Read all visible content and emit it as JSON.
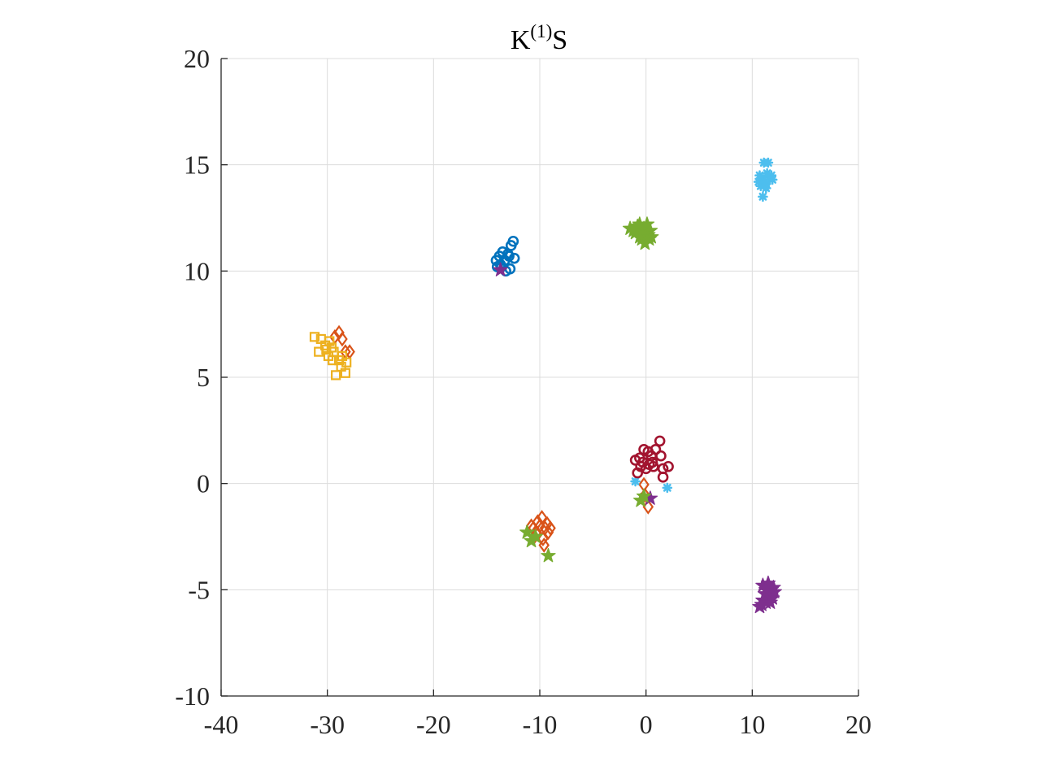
{
  "chart_data": {
    "type": "scatter",
    "title": {
      "main": "K",
      "superscript": "(1)",
      "suffix": "S"
    },
    "xlabel": "",
    "ylabel": "",
    "xlim": [
      -40,
      20
    ],
    "ylim": [
      -10,
      20
    ],
    "xticks": [
      -40,
      -30,
      -20,
      -10,
      0,
      10,
      20
    ],
    "yticks": [
      -10,
      -5,
      0,
      5,
      10,
      15,
      20
    ],
    "xtick_labels": [
      "-40",
      "-30",
      "-20",
      "-10",
      "0",
      "10",
      "20"
    ],
    "ytick_labels": [
      "-10",
      "-5",
      "0",
      "5",
      "10",
      "15",
      "20"
    ],
    "grid": true,
    "series": [
      {
        "color": "#0072BD",
        "marker": "circle",
        "points": [
          [
            -13.6,
            10.2
          ],
          [
            -13.3,
            10.5
          ],
          [
            -13.0,
            10.8
          ],
          [
            -12.7,
            11.2
          ],
          [
            -12.5,
            11.4
          ],
          [
            -13.8,
            10.7
          ],
          [
            -14.1,
            10.5
          ],
          [
            -12.8,
            10.1
          ],
          [
            -13.2,
            10.0
          ],
          [
            -12.4,
            10.6
          ],
          [
            -13.5,
            10.9
          ],
          [
            -14.0,
            10.2
          ],
          [
            -12.9,
            10.7
          ],
          [
            -13.7,
            10.3
          ]
        ]
      },
      {
        "color": "#D95319",
        "marker": "diamond",
        "points": [
          [
            -29.3,
            6.9
          ],
          [
            -28.9,
            7.1
          ],
          [
            -28.6,
            6.8
          ],
          [
            -28.3,
            6.2
          ],
          [
            -27.9,
            6.2
          ],
          [
            -10.2,
            -1.8
          ],
          [
            -9.8,
            -1.6
          ],
          [
            -9.5,
            -2.1
          ],
          [
            -9.2,
            -2.3
          ],
          [
            -10.5,
            -2.5
          ],
          [
            -9.7,
            -2.6
          ],
          [
            -10.0,
            -2.0
          ],
          [
            -9.3,
            -1.9
          ],
          [
            -10.8,
            -2.0
          ],
          [
            -9.6,
            -2.9
          ],
          [
            -10.3,
            -2.3
          ],
          [
            -9.0,
            -2.1
          ],
          [
            -10.6,
            -2.1
          ],
          [
            -0.2,
            -0.05
          ],
          [
            -0.1,
            -0.55
          ],
          [
            0.2,
            -1.1
          ]
        ]
      },
      {
        "color": "#EDB120",
        "marker": "square",
        "points": [
          [
            -31.2,
            6.9
          ],
          [
            -30.6,
            6.8
          ],
          [
            -30.2,
            6.5
          ],
          [
            -29.8,
            6.7
          ],
          [
            -30.8,
            6.2
          ],
          [
            -29.9,
            6.0
          ],
          [
            -29.5,
            5.8
          ],
          [
            -28.9,
            5.8
          ],
          [
            -28.6,
            6.0
          ],
          [
            -28.2,
            5.7
          ],
          [
            -29.2,
            5.1
          ],
          [
            -28.3,
            5.2
          ],
          [
            -30.1,
            6.3
          ],
          [
            -29.4,
            6.2
          ],
          [
            -28.7,
            5.5
          ],
          [
            -29.6,
            6.4
          ]
        ]
      },
      {
        "color": "#7E2F8E",
        "marker": "star",
        "points": [
          [
            11.0,
            -4.8
          ],
          [
            11.4,
            -4.9
          ],
          [
            11.8,
            -5.0
          ],
          [
            11.2,
            -5.2
          ],
          [
            11.6,
            -5.3
          ],
          [
            12.1,
            -5.1
          ],
          [
            11.0,
            -5.5
          ],
          [
            10.7,
            -5.8
          ],
          [
            11.3,
            -5.6
          ],
          [
            11.9,
            -5.4
          ],
          [
            11.5,
            -4.7
          ],
          [
            12.0,
            -4.9
          ],
          [
            10.9,
            -5.7
          ],
          [
            11.7,
            -5.6
          ],
          [
            11.3,
            -5.0
          ],
          [
            -13.7,
            10.05
          ],
          [
            0.4,
            -0.7
          ]
        ]
      },
      {
        "color": "#77AC30",
        "marker": "star",
        "points": [
          [
            -1.5,
            12.0
          ],
          [
            -1.0,
            11.8
          ],
          [
            -0.6,
            12.2
          ],
          [
            -0.2,
            12.0
          ],
          [
            0.2,
            11.7
          ],
          [
            -0.4,
            11.5
          ],
          [
            -0.1,
            11.3
          ],
          [
            0.4,
            11.9
          ],
          [
            -0.8,
            12.1
          ],
          [
            0.1,
            12.2
          ],
          [
            -1.2,
            11.9
          ],
          [
            -0.3,
            11.8
          ],
          [
            0.3,
            11.5
          ],
          [
            -0.6,
            11.6
          ],
          [
            0.5,
            11.6
          ],
          [
            -11.2,
            -2.3
          ],
          [
            -10.8,
            -2.7
          ],
          [
            -10.4,
            -2.5
          ],
          [
            -9.2,
            -3.4
          ],
          [
            -0.5,
            -0.8
          ],
          [
            -0.2,
            -0.6
          ]
        ]
      },
      {
        "color": "#4DBEEE",
        "marker": "asterisk",
        "points": [
          [
            10.7,
            14.5
          ],
          [
            11.0,
            14.3
          ],
          [
            11.3,
            14.1
          ],
          [
            11.6,
            14.4
          ],
          [
            11.9,
            14.3
          ],
          [
            11.1,
            15.1
          ],
          [
            11.5,
            15.1
          ],
          [
            10.8,
            14.0
          ],
          [
            11.3,
            13.9
          ],
          [
            11.0,
            13.5
          ],
          [
            11.8,
            14.5
          ],
          [
            10.6,
            14.2
          ],
          [
            11.4,
            14.6
          ],
          [
            11.2,
            14.2
          ],
          [
            -1.0,
            0.1
          ],
          [
            2.0,
            -0.2
          ]
        ]
      },
      {
        "color": "#A2142F",
        "marker": "circle",
        "points": [
          [
            -1.0,
            1.1
          ],
          [
            -0.6,
            1.2
          ],
          [
            -0.2,
            1.6
          ],
          [
            0.2,
            1.5
          ],
          [
            0.5,
            1.3
          ],
          [
            0.9,
            1.6
          ],
          [
            1.3,
            2.0
          ],
          [
            1.4,
            1.3
          ],
          [
            2.1,
            0.8
          ],
          [
            1.6,
            0.7
          ],
          [
            1.6,
            0.3
          ],
          [
            0.7,
            0.8
          ],
          [
            0.3,
            0.9
          ],
          [
            0.0,
            0.7
          ],
          [
            -0.5,
            0.8
          ],
          [
            -0.8,
            0.5
          ],
          [
            0.6,
            1.0
          ],
          [
            -0.3,
            1.0
          ]
        ]
      }
    ]
  }
}
